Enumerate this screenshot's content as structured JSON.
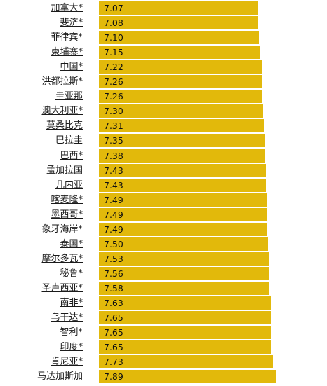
{
  "chart_data": {
    "type": "bar",
    "orientation": "horizontal",
    "bar_color": "#e2b90b",
    "categories": [
      "加拿大*",
      "斐济*",
      "菲律宾*",
      "柬埔寨*",
      "中国*",
      "洪都拉斯*",
      "圭亚那",
      "澳大利亚*",
      "莫桑比克",
      "巴拉圭",
      "巴西*",
      "孟加拉国",
      "几内亚",
      "喀麦隆*",
      "墨西哥*",
      "象牙海岸*",
      "泰国*",
      "摩尔多瓦*",
      "秘鲁*",
      "圣卢西亚*",
      "南非*",
      "乌干达*",
      "智利*",
      "印度*",
      "肯尼亚*",
      "马达加斯加"
    ],
    "values": [
      7.07,
      7.08,
      7.1,
      7.15,
      7.22,
      7.26,
      7.26,
      7.3,
      7.31,
      7.35,
      7.38,
      7.43,
      7.43,
      7.49,
      7.49,
      7.49,
      7.5,
      7.53,
      7.56,
      7.58,
      7.63,
      7.65,
      7.65,
      7.65,
      7.73,
      7.89
    ],
    "value_labels": [
      "7.07",
      "7.08",
      "7.10",
      "7.15",
      "7.22",
      "7.26",
      "7.26",
      "7.30",
      "7.31",
      "7.35",
      "7.38",
      "7.43",
      "7.43",
      "7.49",
      "7.49",
      "7.49",
      "7.50",
      "7.53",
      "7.56",
      "7.58",
      "7.63",
      "7.65",
      "7.65",
      "7.65",
      "7.73",
      "7.89"
    ]
  }
}
